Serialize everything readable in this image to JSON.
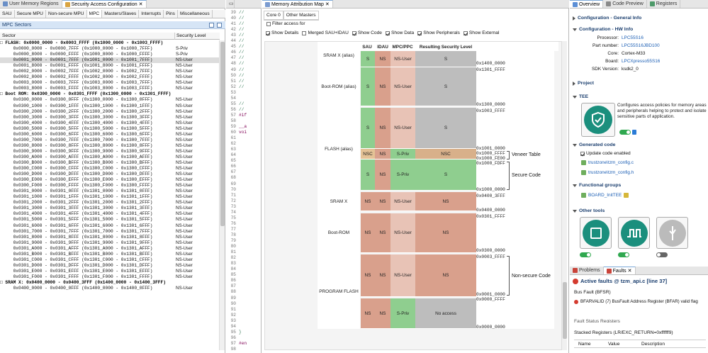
{
  "left": {
    "tabs": [
      {
        "label": "User Memory Regions"
      },
      {
        "label": "Security Access Configuration"
      }
    ],
    "subtabs": [
      "SAU",
      "Secure MPU",
      "Non-secure MPU",
      "MPC",
      "Masters/Slaves",
      "Interrupts",
      "Pins",
      "Miscellaneous"
    ],
    "section_title": "MPC Sectors",
    "col_sector": "Sector",
    "col_level": "Security Level",
    "rows": [
      {
        "t": "□ FLASH: 0x0000_0000 - 0x0003_FFFF (0x1000_0000 - 0x1003_FFFF)",
        "l": "",
        "g": true
      },
      {
        "t": "     0x0000_0000 - 0x0000_7FFF (0x1000_0000 - 0x1000_7FFF)",
        "l": "S-Priv"
      },
      {
        "t": "     0x0000_8000 - 0x0000_FFFF (0x1000_8000 - 0x1000_FFFF)",
        "l": "S-Priv"
      },
      {
        "t": "     0x0001_0000 - 0x0001_7FFF (0x1001_0000 - 0x1001_7FFF)",
        "l": "NS-User",
        "s": true
      },
      {
        "t": "     0x0001_8000 - 0x0001_FFFF (0x1001_8000 - 0x1001_FFFF)",
        "l": "NS-User"
      },
      {
        "t": "     0x0002_0000 - 0x0002_7FFF (0x1002_0000 - 0x1002_7FFF)",
        "l": "NS-User"
      },
      {
        "t": "     0x0002_8000 - 0x0002_FFFF (0x1002_8000 - 0x1002_FFFF)",
        "l": "NS-User"
      },
      {
        "t": "     0x0003_0000 - 0x0003_7FFF (0x1003_0000 - 0x1003_7FFF)",
        "l": "NS-User"
      },
      {
        "t": "     0x0003_8000 - 0x0003_FFFF (0x1003_8000 - 0x1003_FFFF)",
        "l": "NS-User"
      },
      {
        "t": "□ Boot ROM: 0x0300_0000 - 0x0301_FFFF (0x1300_0000 - 0x1301_FFFF)",
        "l": "",
        "g": true
      },
      {
        "t": "     0x0300_0000 - 0x0300_0FFF (0x1300_0000 - 0x1300_0FFF)",
        "l": "NS-User"
      },
      {
        "t": "     0x0300_1000 - 0x0300_1FFF (0x1300_1000 - 0x1300_1FFF)",
        "l": "NS-User"
      },
      {
        "t": "     0x0300_2000 - 0x0300_2FFF (0x1300_2000 - 0x1300_2FFF)",
        "l": "NS-User"
      },
      {
        "t": "     0x0300_3000 - 0x0300_3FFF (0x1300_3000 - 0x1300_3FFF)",
        "l": "NS-User"
      },
      {
        "t": "     0x0300_4000 - 0x0300_4FFF (0x1300_4000 - 0x1300_4FFF)",
        "l": "NS-User"
      },
      {
        "t": "     0x0300_5000 - 0x0300_5FFF (0x1300_5000 - 0x1300_5FFF)",
        "l": "NS-User"
      },
      {
        "t": "     0x0300_6000 - 0x0300_6FFF (0x1300_6000 - 0x1300_6FFF)",
        "l": "NS-User"
      },
      {
        "t": "     0x0300_7000 - 0x0300_7FFF (0x1300_7000 - 0x1300_7FFF)",
        "l": "NS-User"
      },
      {
        "t": "     0x0300_8000 - 0x0300_8FFF (0x1300_8000 - 0x1300_8FFF)",
        "l": "NS-User"
      },
      {
        "t": "     0x0300_9000 - 0x0300_9FFF (0x1300_9000 - 0x1300_9FFF)",
        "l": "NS-User"
      },
      {
        "t": "     0x0300_A000 - 0x0300_AFFF (0x1300_A000 - 0x1300_AFFF)",
        "l": "NS-User"
      },
      {
        "t": "     0x0300_B000 - 0x0300_BFFF (0x1300_B000 - 0x1300_BFFF)",
        "l": "NS-User"
      },
      {
        "t": "     0x0300_C000 - 0x0300_CFFF (0x1300_C000 - 0x1300_CFFF)",
        "l": "NS-User"
      },
      {
        "t": "     0x0300_D000 - 0x0300_DFFF (0x1300_D000 - 0x1300_DFFF)",
        "l": "NS-User"
      },
      {
        "t": "     0x0300_E000 - 0x0300_EFFF (0x1300_E000 - 0x1300_EFFF)",
        "l": "NS-User"
      },
      {
        "t": "     0x0300_F000 - 0x0300_FFFF (0x1300_F000 - 0x1300_FFFF)",
        "l": "NS-User"
      },
      {
        "t": "     0x0301_0000 - 0x0301_0FFF (0x1301_0000 - 0x1301_0FFF)",
        "l": "NS-User"
      },
      {
        "t": "     0x0301_1000 - 0x0301_1FFF (0x1301_1000 - 0x1301_1FFF)",
        "l": "NS-User"
      },
      {
        "t": "     0x0301_2000 - 0x0301_2FFF (0x1301_2000 - 0x1301_2FFF)",
        "l": "NS-User"
      },
      {
        "t": "     0x0301_3000 - 0x0301_3FFF (0x1301_3000 - 0x1301_3FFF)",
        "l": "NS-User"
      },
      {
        "t": "     0x0301_4000 - 0x0301_4FFF (0x1301_4000 - 0x1301_4FFF)",
        "l": "NS-User"
      },
      {
        "t": "     0x0301_5000 - 0x0301_5FFF (0x1301_5000 - 0x1301_5FFF)",
        "l": "NS-User"
      },
      {
        "t": "     0x0301_6000 - 0x0301_6FFF (0x1301_6000 - 0x1301_6FFF)",
        "l": "NS-User"
      },
      {
        "t": "     0x0301_7000 - 0x0301_7FFF (0x1301_7000 - 0x1301_7FFF)",
        "l": "NS-User"
      },
      {
        "t": "     0x0301_8000 - 0x0301_8FFF (0x1301_8000 - 0x1301_8FFF)",
        "l": "NS-User"
      },
      {
        "t": "     0x0301_9000 - 0x0301_9FFF (0x1301_9000 - 0x1301_9FFF)",
        "l": "NS-User"
      },
      {
        "t": "     0x0301_A000 - 0x0301_AFFF (0x1301_A000 - 0x1301_AFFF)",
        "l": "NS-User"
      },
      {
        "t": "     0x0301_B000 - 0x0301_BFFF (0x1301_B000 - 0x1301_BFFF)",
        "l": "NS-User"
      },
      {
        "t": "     0x0301_C000 - 0x0301_CFFF (0x1301_C000 - 0x1301_CFFF)",
        "l": "NS-User"
      },
      {
        "t": "     0x0301_D000 - 0x0301_DFFF (0x1301_D000 - 0x1301_DFFF)",
        "l": "NS-User"
      },
      {
        "t": "     0x0301_E000 - 0x0301_EFFF (0x1301_E000 - 0x1301_EFFF)",
        "l": "NS-User"
      },
      {
        "t": "     0x0301_F000 - 0x0301_FFFF (0x1301_F000 - 0x1301_FFFF)",
        "l": "NS-User"
      },
      {
        "t": "□ SRAM X: 0x0400_0000 - 0x0400_3FFF (0x1400_0000 - 0x1400_3FFF)",
        "l": "",
        "g": true
      },
      {
        "t": "     0x0400_0000 - 0x0400_0FFF (0x1400_0000 - 0x1400_0FFF)",
        "l": "NS-User"
      }
    ]
  },
  "code": {
    "lines": [
      {
        "n": "39",
        "c": "//"
      },
      {
        "n": "40",
        "c": "//"
      },
      {
        "n": "41",
        "c": "//"
      },
      {
        "n": "42",
        "c": "//"
      },
      {
        "n": "43",
        "c": "//"
      },
      {
        "n": "44",
        "c": "//"
      },
      {
        "n": "45",
        "c": "//"
      },
      {
        "n": "46",
        "c": "//"
      },
      {
        "n": "47",
        "c": "//"
      },
      {
        "n": "48",
        "c": "//"
      },
      {
        "n": "49",
        "c": "//"
      },
      {
        "n": "50",
        "c": "//"
      },
      {
        "n": "51",
        "c": "//"
      },
      {
        "n": "52",
        "c": "//"
      },
      {
        "n": "53",
        "c": ""
      },
      {
        "n": "54",
        "c": ""
      },
      {
        "n": "55",
        "c": "//"
      },
      {
        "n": "56",
        "c": "//"
      },
      {
        "n": "57",
        "c": "#if"
      },
      {
        "n": "58",
        "c": ""
      },
      {
        "n": "59",
        "c": "__a"
      },
      {
        "n": "60",
        "c": "voi"
      },
      {
        "n": "61",
        "c": ""
      },
      {
        "n": "62",
        "c": ""
      },
      {
        "n": "63",
        "c": ""
      },
      {
        "n": "64",
        "c": ""
      },
      {
        "n": "65",
        "c": ""
      },
      {
        "n": "66",
        "c": ""
      },
      {
        "n": "67",
        "c": ""
      },
      {
        "n": "68",
        "c": ""
      },
      {
        "n": "69",
        "c": ""
      },
      {
        "n": "70",
        "c": ""
      },
      {
        "n": "71",
        "c": ""
      },
      {
        "n": "72",
        "c": ""
      },
      {
        "n": "73",
        "c": ""
      },
      {
        "n": "74",
        "c": ""
      },
      {
        "n": "75",
        "c": ""
      },
      {
        "n": "76",
        "c": ""
      },
      {
        "n": "77",
        "c": ""
      },
      {
        "n": "78",
        "c": ""
      },
      {
        "n": "79",
        "c": ""
      },
      {
        "n": "80",
        "c": ""
      },
      {
        "n": "81",
        "c": ""
      },
      {
        "n": "82",
        "c": ""
      },
      {
        "n": "83",
        "c": ""
      },
      {
        "n": "84",
        "c": ""
      },
      {
        "n": "85",
        "c": ""
      },
      {
        "n": "86",
        "c": ""
      },
      {
        "n": "87",
        "c": ""
      },
      {
        "n": "88",
        "c": ""
      },
      {
        "n": "89",
        "c": ""
      },
      {
        "n": "90",
        "c": ""
      },
      {
        "n": "91",
        "c": ""
      },
      {
        "n": "92",
        "c": ""
      },
      {
        "n": "93",
        "c": ""
      },
      {
        "n": "94",
        "c": ""
      },
      {
        "n": "95",
        "c": "}"
      },
      {
        "n": "96",
        "c": ""
      },
      {
        "n": "97",
        "c": "#en"
      },
      {
        "n": "98",
        "c": ""
      }
    ]
  },
  "map": {
    "tab": "Memory Attribution Map",
    "subtabs": [
      "Core 0",
      "Other Masters"
    ],
    "filter_label": "Filter access for",
    "options": [
      "Show Details",
      "Merged SAU+IDAU",
      "Show Code",
      "Show Data",
      "Show Peripherals",
      "Show External"
    ],
    "headers": [
      "SAU",
      "IDAU",
      "MPC/PPC",
      "Resulting Security Level"
    ],
    "regions": [
      "SRAM X (alias)",
      "Boot-ROM (alias)",
      "FLASH (alias)",
      "SRAM X",
      "Boot-ROM",
      "PROGRAM FLASH"
    ],
    "cells": {
      "s": "S",
      "ns": "NS",
      "nsu": "NS-User",
      "nsc": "NSC",
      "spriv": "S-Priv",
      "noacc": "No access"
    },
    "addresses": [
      "0x1400_0000",
      "0x1301_FFFF",
      "0x1300_0000",
      "0x1003_FFFF",
      "0x1001_0000",
      "0x1000_FFFF",
      "0x1000_FE00",
      "0x1000_FDFF",
      "0x1000_0000",
      "0x0400_3FFF",
      "0x0400_0000",
      "0x0301_FFFF",
      "0x0300_0000",
      "0x0003_FFFF",
      "0x0001_0000",
      "0x0000_FFFF",
      "0x0000_0000"
    ],
    "annotations": [
      "Veneer Table",
      "Secure Code",
      "Non-secure Code"
    ],
    "colors": {
      "secure": "#8fce8f",
      "nonsecure": "#d9a08c",
      "gray": "#bdbdbd"
    }
  },
  "right": {
    "tabs": [
      "Overview",
      "Code Preview",
      "Registers"
    ],
    "general_info": "Configuration - General Info",
    "hw_info": "Configuration - HW Info",
    "hw": [
      {
        "k": "Processor:",
        "v": "LPC55S16",
        "link": true
      },
      {
        "k": "Part number:",
        "v": "LPC55S16JBD100",
        "link": true
      },
      {
        "k": "Core:",
        "v": "Cortex-M33",
        "link": false
      },
      {
        "k": "Board:",
        "v": "LPCXpresso55S16",
        "link": true
      },
      {
        "k": "SDK Version:",
        "v": "ksdk2_0",
        "link": false
      }
    ],
    "project": "Project",
    "tee": "TEE",
    "tee_desc": "Configures access policies for memory areas and peripherals helping to protect and isolate sensitive parts of application.",
    "generated_code": "Generated code",
    "update_code": "Update code enabled",
    "files": [
      "trustzone\\tzm_config.c",
      "trustzone\\tzm_config.h"
    ],
    "functional_groups": "Functional groups",
    "fg_item": "BOARD_InitTEE",
    "other_tools": "Other tools",
    "problems_tab": "Problems",
    "faults_tab": "Faults",
    "active_faults": "Active faults @ tzm_api.c [line 37]",
    "bus_fault": "Bus Fault (BFSR)",
    "bf_line": "BFARVALID  (7)  BusFault Address Register (BFAR) valid flag",
    "fault_status": "Fault Status Registers",
    "stacked": "Stacked Registers (LR/EXC_RETURN=0xffffff9)",
    "stk_cols": [
      "Name",
      "Value",
      "Description"
    ]
  }
}
